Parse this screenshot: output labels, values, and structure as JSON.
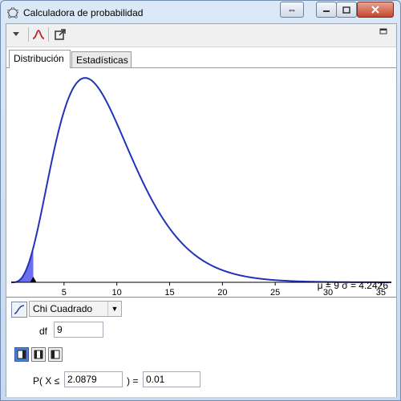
{
  "window": {
    "title": "Calculadora de probabilidad"
  },
  "tabs": [
    {
      "label": "Distribución",
      "active": true
    },
    {
      "label": "Estadísticas",
      "active": false
    }
  ],
  "chart_data": {
    "type": "area",
    "distribution": "chi-squared",
    "df": 9,
    "xlim": [
      0,
      36
    ],
    "ylim": [
      0,
      0.105
    ],
    "xticks": [
      5,
      10,
      15,
      20,
      25,
      30,
      35
    ],
    "shaded_region": {
      "from": 0,
      "to": 2.0879
    },
    "marker_x": 2.0879,
    "curve_color": "#2233bb",
    "shade_color": "#6d6df0",
    "grid": false
  },
  "stats": {
    "text": "μ = 9   σ = 4.2426"
  },
  "distribution_select": {
    "value": "Chi Cuadrado"
  },
  "params": {
    "df_label": "df",
    "df_value": "9"
  },
  "probability": {
    "prefix": "P( X ≤",
    "x_value": "2.0879",
    "suffix": ") =",
    "result": "0.01"
  },
  "icons": [
    "window-app-icon",
    "swap-icon",
    "minimize-icon",
    "maximize-icon",
    "close-icon",
    "menu-triangle-icon",
    "curve-icon",
    "export-icon",
    "dock-icon",
    "cdf-icon",
    "left-tail-icon",
    "interval-icon",
    "right-tail-icon"
  ]
}
